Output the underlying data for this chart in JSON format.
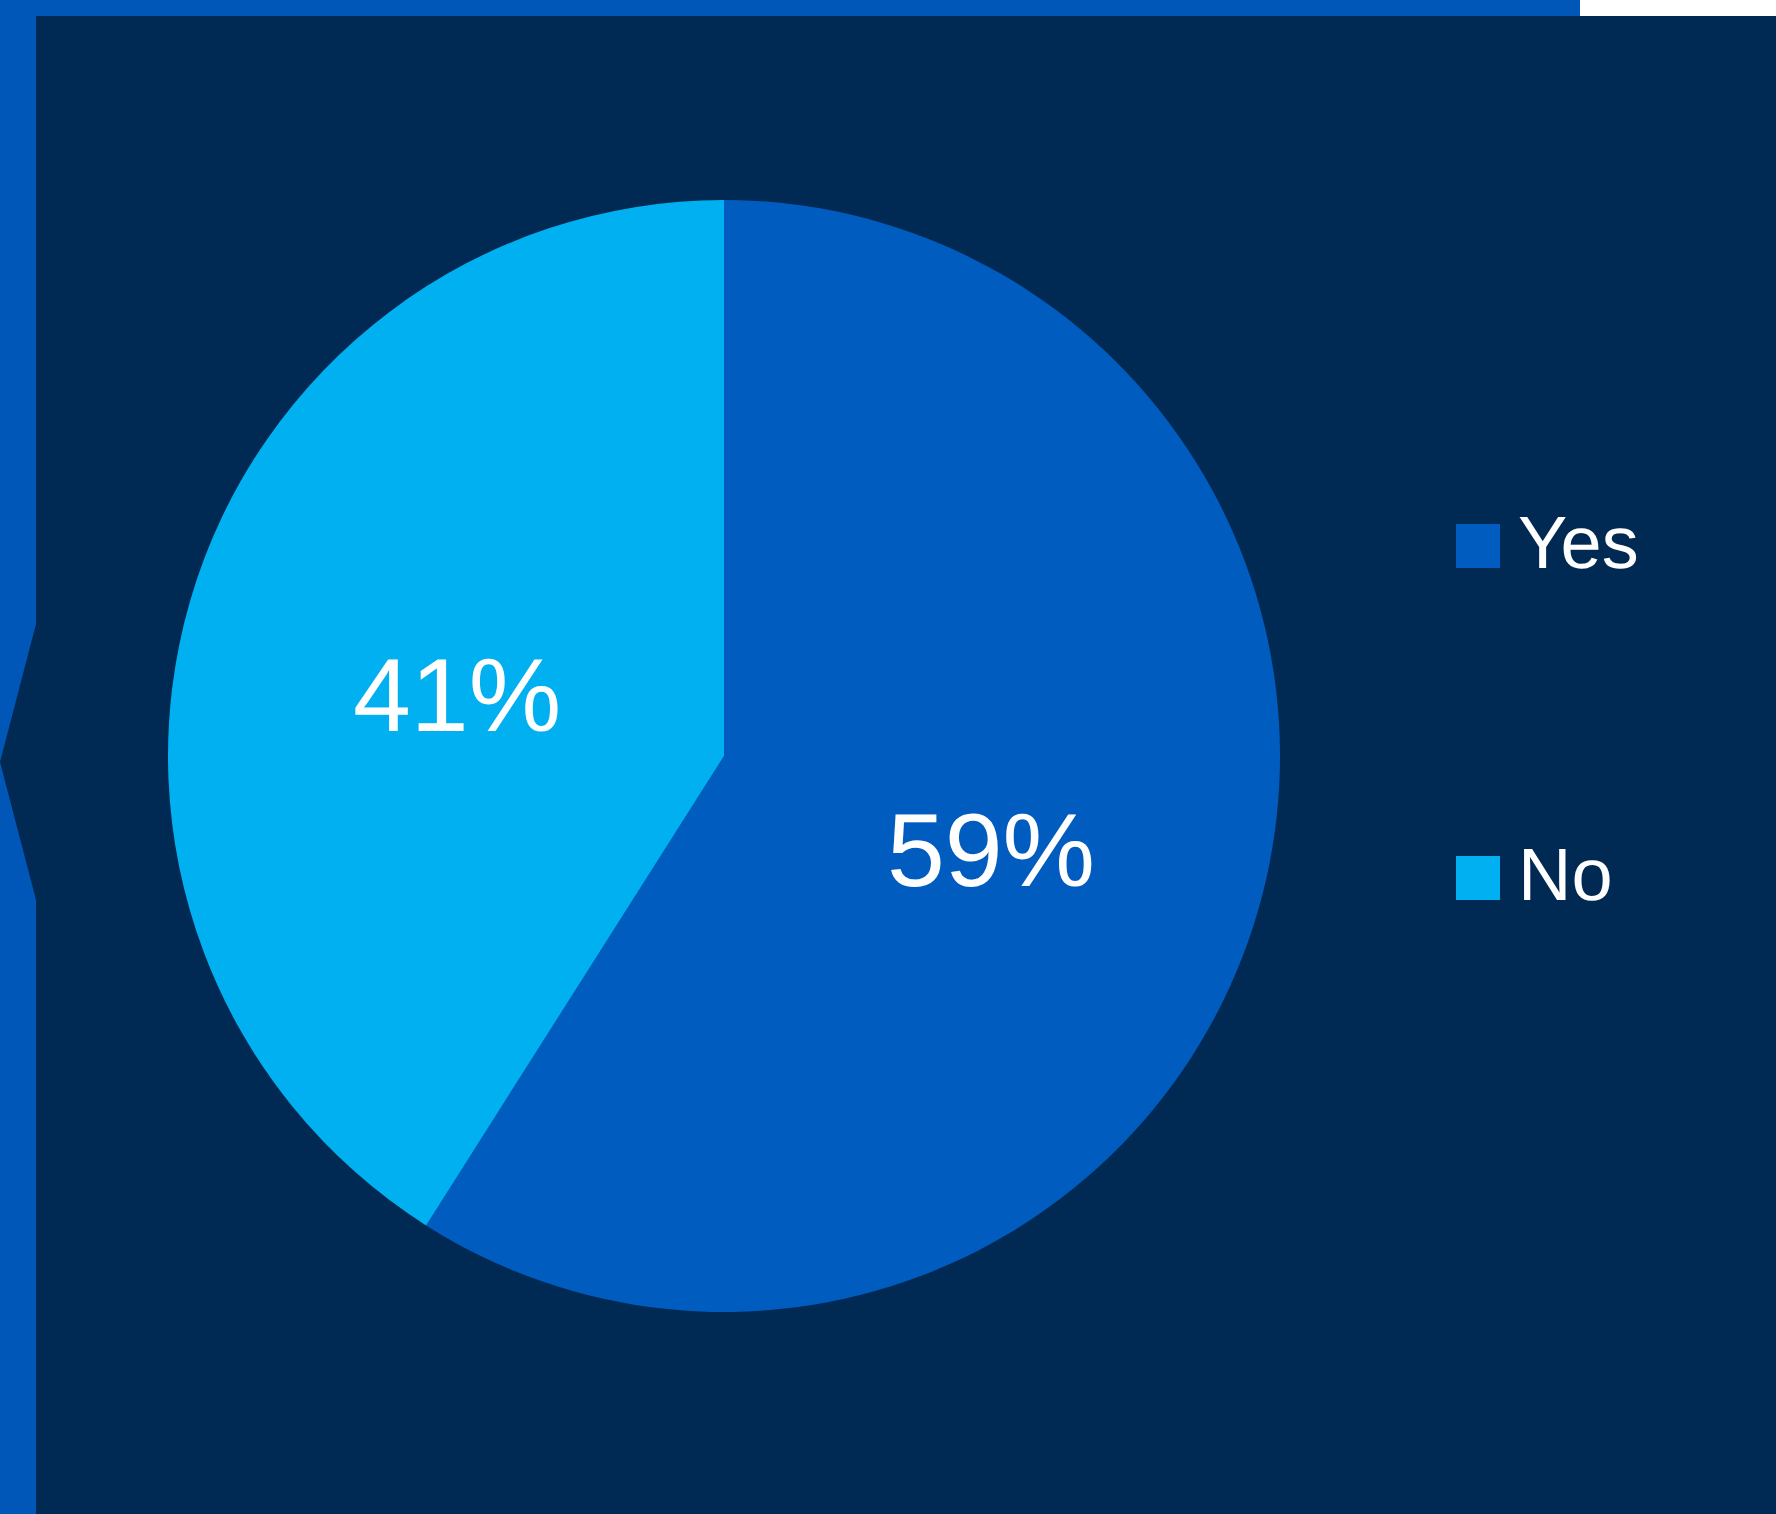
{
  "chart_data": {
    "type": "pie",
    "categories": [
      "Yes",
      "No"
    ],
    "values": [
      59,
      41
    ],
    "colors": [
      "#005cbf",
      "#00b0f0"
    ],
    "value_labels": [
      "59%",
      "41%"
    ],
    "legend": "right"
  }
}
